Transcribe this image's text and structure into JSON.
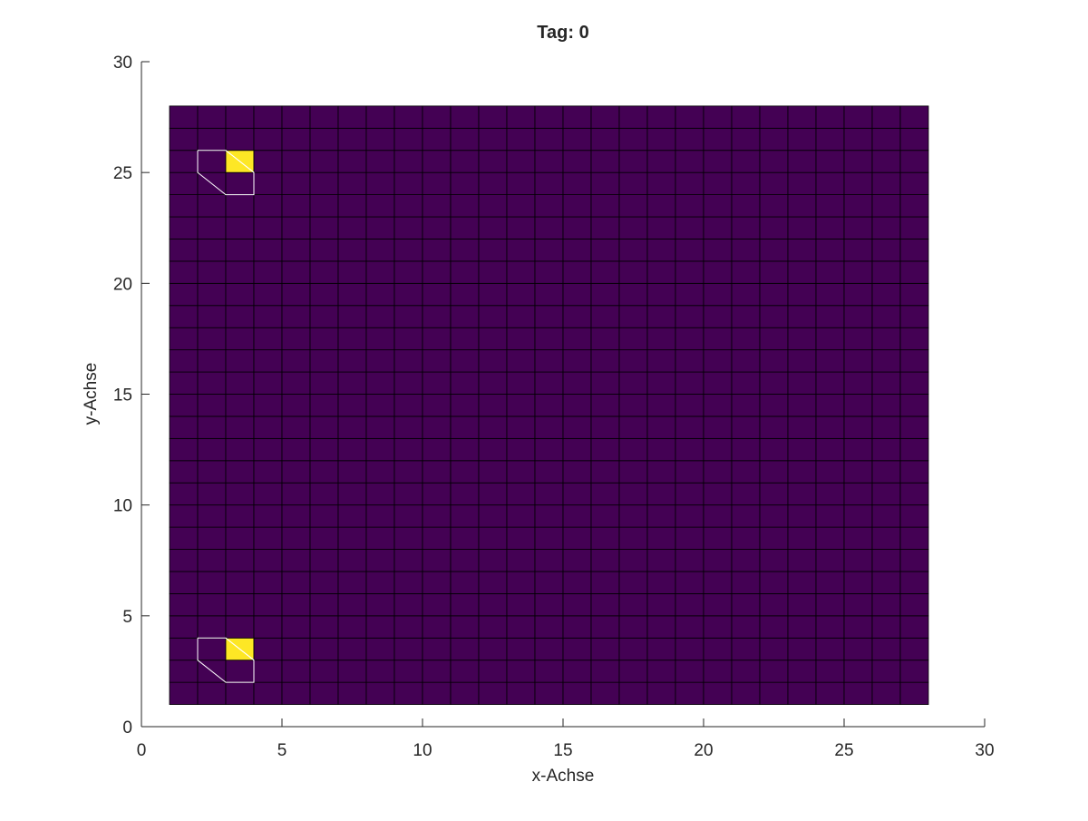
{
  "chart_data": {
    "type": "heatmap",
    "title": "Tag: 0",
    "xlabel": "x-Achse",
    "ylabel": "y-Achse",
    "xlim": [
      0,
      30
    ],
    "ylim": [
      0,
      30
    ],
    "xticks": [
      0,
      5,
      10,
      15,
      20,
      25,
      30
    ],
    "yticks": [
      0,
      5,
      10,
      15,
      20,
      25,
      30
    ],
    "grid_x_range": [
      1,
      28
    ],
    "grid_y_range": [
      1,
      28
    ],
    "cell_size": 1,
    "grid": false,
    "background_value": 0,
    "colormap": {
      "low": "#440154",
      "high": "#fde725"
    },
    "cell_edge_color": "#000000",
    "highlighted_cells": [
      {
        "x": [
          3,
          4
        ],
        "y": [
          25,
          26
        ],
        "value": 1
      },
      {
        "x": [
          3,
          4
        ],
        "y": [
          3,
          4
        ],
        "value": 1
      }
    ],
    "white_outlines": [
      {
        "points": [
          [
            2,
            26
          ],
          [
            3,
            26
          ],
          [
            4,
            25
          ],
          [
            4,
            24
          ],
          [
            3,
            24
          ],
          [
            2,
            25
          ],
          [
            2,
            26
          ]
        ],
        "diagonal": [
          [
            3,
            26
          ],
          [
            4,
            25
          ]
        ]
      },
      {
        "points": [
          [
            2,
            4
          ],
          [
            3,
            4
          ],
          [
            4,
            3
          ],
          [
            4,
            2
          ],
          [
            3,
            2
          ],
          [
            2,
            3
          ],
          [
            2,
            4
          ]
        ],
        "diagonal": [
          [
            3,
            4
          ],
          [
            4,
            3
          ]
        ]
      }
    ]
  }
}
